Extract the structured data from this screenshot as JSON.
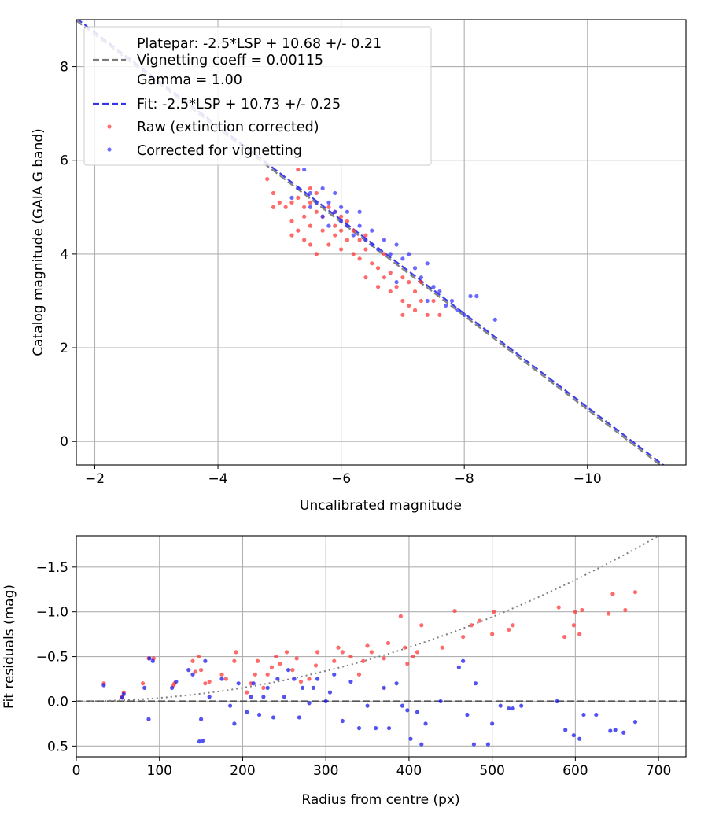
{
  "chart_data": [
    {
      "type": "scatter",
      "title": "",
      "xlabel": "Uncalibrated magnitude",
      "ylabel": "Catalog magnitude (GAIA G band)",
      "xlim": [
        -1.7,
        -11.6
      ],
      "ylim": [
        9.0,
        -0.5
      ],
      "x_ticks": [
        -2,
        -4,
        -6,
        -8,
        -10
      ],
      "x_tick_labels": [
        "−2",
        "−4",
        "−6",
        "−8",
        "−10"
      ],
      "y_ticks": [
        0,
        2,
        4,
        6,
        8
      ],
      "y_tick_labels": [
        "0",
        "2",
        "4",
        "6",
        "8"
      ],
      "grid": true,
      "legend_position": "top-left",
      "legend": [
        {
          "label": "Platepar: -2.5*LSP + 10.68 +/- 0.21",
          "style": "blank"
        },
        {
          "label": "Vignetting coeff = 0.00115",
          "style": "dashed",
          "color": "#7a7a7a"
        },
        {
          "label": "Gamma = 1.00",
          "style": "blank"
        },
        {
          "label": "Fit: -2.5*LSP + 10.73 +/- 0.25",
          "style": "dashed",
          "color": "#3535e6"
        },
        {
          "label": "Raw (extinction corrected)",
          "style": "dot",
          "color": "#ff3030"
        },
        {
          "label": "Corrected for vignetting",
          "style": "dot",
          "color": "#3030ff"
        }
      ],
      "lines": [
        {
          "name": "Platepar",
          "slope": 1.0,
          "intercept": 10.68,
          "color": "#7a7a7a",
          "dash": true
        },
        {
          "name": "Fit",
          "slope": 1.0,
          "intercept": 10.73,
          "color": "#3535e6",
          "dash": true
        }
      ],
      "series": [
        {
          "name": "Raw (extinction corrected)",
          "color": "#ff3030",
          "points": [
            [
              -4.8,
              5.6
            ],
            [
              -4.9,
              5.3
            ],
            [
              -4.9,
              5.0
            ],
            [
              -5.0,
              5.1
            ],
            [
              -5.1,
              5.0
            ],
            [
              -5.2,
              5.1
            ],
            [
              -5.2,
              4.7
            ],
            [
              -5.2,
              4.4
            ],
            [
              -5.3,
              4.5
            ],
            [
              -5.3,
              5.2
            ],
            [
              -5.3,
              5.8
            ],
            [
              -5.4,
              4.3
            ],
            [
              -5.4,
              4.8
            ],
            [
              -5.4,
              5.0
            ],
            [
              -5.5,
              4.2
            ],
            [
              -5.5,
              4.6
            ],
            [
              -5.5,
              5.1
            ],
            [
              -5.5,
              5.4
            ],
            [
              -5.6,
              4.0
            ],
            [
              -5.6,
              4.9
            ],
            [
              -5.6,
              5.3
            ],
            [
              -5.7,
              4.5
            ],
            [
              -5.7,
              4.8
            ],
            [
              -5.8,
              4.2
            ],
            [
              -5.8,
              5.0
            ],
            [
              -5.9,
              4.4
            ],
            [
              -5.9,
              4.6
            ],
            [
              -5.9,
              4.9
            ],
            [
              -6.0,
              4.1
            ],
            [
              -6.0,
              4.5
            ],
            [
              -6.0,
              4.8
            ],
            [
              -6.1,
              4.3
            ],
            [
              -6.1,
              4.7
            ],
            [
              -6.2,
              4.0
            ],
            [
              -6.2,
              4.5
            ],
            [
              -6.3,
              3.9
            ],
            [
              -6.3,
              4.3
            ],
            [
              -6.4,
              3.5
            ],
            [
              -6.4,
              4.1
            ],
            [
              -6.4,
              4.4
            ],
            [
              -6.5,
              3.8
            ],
            [
              -6.6,
              3.3
            ],
            [
              -6.6,
              3.7
            ],
            [
              -6.7,
              3.5
            ],
            [
              -6.7,
              4.0
            ],
            [
              -6.8,
              3.6
            ],
            [
              -6.8,
              3.2
            ],
            [
              -6.9,
              3.3
            ],
            [
              -7.0,
              3.0
            ],
            [
              -7.0,
              3.5
            ],
            [
              -7.1,
              3.4
            ],
            [
              -7.1,
              2.9
            ],
            [
              -7.2,
              2.8
            ],
            [
              -7.2,
              3.2
            ],
            [
              -7.3,
              3.0
            ],
            [
              -7.3,
              3.4
            ],
            [
              -7.4,
              2.7
            ],
            [
              -7.5,
              3.0
            ],
            [
              -7.6,
              2.7
            ],
            [
              -7.0,
              2.7
            ]
          ]
        },
        {
          "name": "Corrected for vignetting",
          "color": "#3030ff",
          "points": [
            [
              -5.2,
              5.2
            ],
            [
              -5.3,
              5.4
            ],
            [
              -5.4,
              5.8
            ],
            [
              -5.5,
              5.0
            ],
            [
              -5.5,
              5.3
            ],
            [
              -5.6,
              5.1
            ],
            [
              -5.7,
              4.8
            ],
            [
              -5.7,
              5.4
            ],
            [
              -5.8,
              4.6
            ],
            [
              -5.8,
              5.1
            ],
            [
              -5.9,
              4.9
            ],
            [
              -5.9,
              5.3
            ],
            [
              -6.0,
              4.7
            ],
            [
              -6.0,
              5.0
            ],
            [
              -6.1,
              4.6
            ],
            [
              -6.1,
              4.9
            ],
            [
              -6.2,
              4.4
            ],
            [
              -6.3,
              4.6
            ],
            [
              -6.3,
              4.9
            ],
            [
              -6.4,
              4.3
            ],
            [
              -6.5,
              4.2
            ],
            [
              -6.5,
              4.5
            ],
            [
              -6.6,
              4.1
            ],
            [
              -6.7,
              4.3
            ],
            [
              -6.8,
              4.0
            ],
            [
              -6.9,
              4.2
            ],
            [
              -7.0,
              3.9
            ],
            [
              -7.1,
              4.0
            ],
            [
              -7.2,
              3.7
            ],
            [
              -7.3,
              3.5
            ],
            [
              -7.4,
              3.8
            ],
            [
              -7.5,
              3.3
            ],
            [
              -7.6,
              3.2
            ],
            [
              -7.7,
              2.9
            ],
            [
              -7.8,
              3.0
            ],
            [
              -7.9,
              2.8
            ],
            [
              -8.0,
              2.7
            ],
            [
              -8.1,
              3.1
            ],
            [
              -8.2,
              3.1
            ],
            [
              -8.5,
              2.6
            ],
            [
              -7.4,
              3.0
            ],
            [
              -6.9,
              3.4
            ]
          ]
        }
      ]
    },
    {
      "type": "scatter",
      "title": "",
      "xlabel": "Radius from centre (px)",
      "ylabel": "Fit residuals (mag)",
      "xlim": [
        0,
        733
      ],
      "ylim": [
        -1.85,
        0.62
      ],
      "x_ticks": [
        0,
        100,
        200,
        300,
        400,
        500,
        600,
        700
      ],
      "x_tick_labels": [
        "0",
        "100",
        "200",
        "300",
        "400",
        "500",
        "600",
        "700"
      ],
      "y_ticks": [
        0.5,
        0.0,
        -0.5,
        -1.0,
        -1.5
      ],
      "y_tick_labels": [
        "0.5",
        "0.0",
        "−0.5",
        "−1.0",
        "−1.5"
      ],
      "grid": true,
      "lines": [
        {
          "name": "zero",
          "type": "hline",
          "y": 0.0,
          "color": "#555555",
          "dash": true
        },
        {
          "name": "vignetting curve",
          "type": "curve",
          "coeff": 0.00115,
          "color": "#808080",
          "dotted": true
        }
      ],
      "series": [
        {
          "name": "Raw (extinction corrected)",
          "color": "#ff3030",
          "points": [
            [
              33,
              -0.2
            ],
            [
              55,
              -0.05
            ],
            [
              57,
              -0.1
            ],
            [
              80,
              -0.2
            ],
            [
              87,
              -0.48
            ],
            [
              93,
              -0.48
            ],
            [
              117,
              -0.18
            ],
            [
              118,
              -0.2
            ],
            [
              140,
              -0.45
            ],
            [
              143,
              -0.33
            ],
            [
              147,
              -0.5
            ],
            [
              150,
              -0.35
            ],
            [
              155,
              -0.2
            ],
            [
              160,
              -0.22
            ],
            [
              175,
              -0.3
            ],
            [
              180,
              -0.25
            ],
            [
              190,
              -0.45
            ],
            [
              192,
              -0.55
            ],
            [
              205,
              -0.1
            ],
            [
              210,
              -0.2
            ],
            [
              215,
              -0.3
            ],
            [
              218,
              -0.45
            ],
            [
              225,
              -0.15
            ],
            [
              230,
              -0.3
            ],
            [
              235,
              -0.38
            ],
            [
              240,
              -0.5
            ],
            [
              245,
              -0.42
            ],
            [
              253,
              -0.55
            ],
            [
              260,
              -0.35
            ],
            [
              265,
              -0.48
            ],
            [
              270,
              -0.22
            ],
            [
              280,
              -0.25
            ],
            [
              288,
              -0.4
            ],
            [
              290,
              -0.55
            ],
            [
              310,
              -0.45
            ],
            [
              315,
              -0.6
            ],
            [
              320,
              -0.55
            ],
            [
              330,
              -0.5
            ],
            [
              340,
              -0.3
            ],
            [
              345,
              -0.45
            ],
            [
              350,
              -0.62
            ],
            [
              355,
              -0.55
            ],
            [
              370,
              -0.48
            ],
            [
              375,
              -0.65
            ],
            [
              390,
              -0.95
            ],
            [
              395,
              -0.6
            ],
            [
              398,
              -0.42
            ],
            [
              405,
              -0.5
            ],
            [
              410,
              -0.55
            ],
            [
              415,
              -0.85
            ],
            [
              440,
              -0.6
            ],
            [
              455,
              -1.01
            ],
            [
              465,
              -0.72
            ],
            [
              475,
              -0.85
            ],
            [
              485,
              -0.9
            ],
            [
              500,
              -0.75
            ],
            [
              502,
              -1.0
            ],
            [
              520,
              -0.8
            ],
            [
              525,
              -0.85
            ],
            [
              580,
              -1.05
            ],
            [
              587,
              -0.72
            ],
            [
              598,
              -0.85
            ],
            [
              600,
              -1.0
            ],
            [
              605,
              -0.75
            ],
            [
              608,
              -1.02
            ],
            [
              640,
              -0.98
            ],
            [
              645,
              -1.2
            ],
            [
              660,
              -1.02
            ],
            [
              672,
              -1.22
            ]
          ]
        },
        {
          "name": "Corrected for vignetting",
          "color": "#1010ee",
          "points": [
            [
              33,
              -0.18
            ],
            [
              55,
              -0.04
            ],
            [
              57,
              -0.08
            ],
            [
              82,
              -0.15
            ],
            [
              87,
              0.2
            ],
            [
              88,
              -0.48
            ],
            [
              92,
              -0.45
            ],
            [
              115,
              -0.15
            ],
            [
              120,
              -0.22
            ],
            [
              135,
              -0.35
            ],
            [
              140,
              -0.3
            ],
            [
              148,
              0.45
            ],
            [
              150,
              0.2
            ],
            [
              152,
              0.44
            ],
            [
              155,
              -0.45
            ],
            [
              160,
              -0.05
            ],
            [
              175,
              -0.25
            ],
            [
              185,
              0.05
            ],
            [
              190,
              0.25
            ],
            [
              195,
              -0.2
            ],
            [
              205,
              0.12
            ],
            [
              210,
              -0.05
            ],
            [
              213,
              -0.2
            ],
            [
              220,
              0.15
            ],
            [
              225,
              -0.05
            ],
            [
              230,
              -0.15
            ],
            [
              237,
              0.18
            ],
            [
              242,
              -0.25
            ],
            [
              250,
              -0.05
            ],
            [
              255,
              -0.35
            ],
            [
              262,
              -0.25
            ],
            [
              268,
              0.18
            ],
            [
              272,
              -0.15
            ],
            [
              280,
              0.02
            ],
            [
              285,
              -0.15
            ],
            [
              290,
              -0.25
            ],
            [
              300,
              0.0
            ],
            [
              305,
              -0.1
            ],
            [
              310,
              -0.3
            ],
            [
              320,
              0.22
            ],
            [
              330,
              -0.22
            ],
            [
              340,
              0.3
            ],
            [
              350,
              0.05
            ],
            [
              360,
              0.3
            ],
            [
              370,
              -0.15
            ],
            [
              376,
              0.3
            ],
            [
              385,
              -0.2
            ],
            [
              392,
              0.05
            ],
            [
              398,
              0.1
            ],
            [
              402,
              0.42
            ],
            [
              410,
              0.12
            ],
            [
              415,
              0.48
            ],
            [
              420,
              0.25
            ],
            [
              438,
              0.0
            ],
            [
              460,
              -0.38
            ],
            [
              465,
              -0.45
            ],
            [
              470,
              0.15
            ],
            [
              478,
              0.48
            ],
            [
              480,
              -0.2
            ],
            [
              495,
              0.48
            ],
            [
              500,
              0.25
            ],
            [
              510,
              0.05
            ],
            [
              520,
              0.08
            ],
            [
              525,
              0.08
            ],
            [
              535,
              0.05
            ],
            [
              578,
              0.0
            ],
            [
              588,
              0.32
            ],
            [
              598,
              0.38
            ],
            [
              605,
              0.42
            ],
            [
              610,
              0.15
            ],
            [
              625,
              0.15
            ],
            [
              642,
              0.33
            ],
            [
              648,
              0.32
            ],
            [
              658,
              0.35
            ],
            [
              672,
              0.23
            ]
          ]
        }
      ]
    }
  ]
}
